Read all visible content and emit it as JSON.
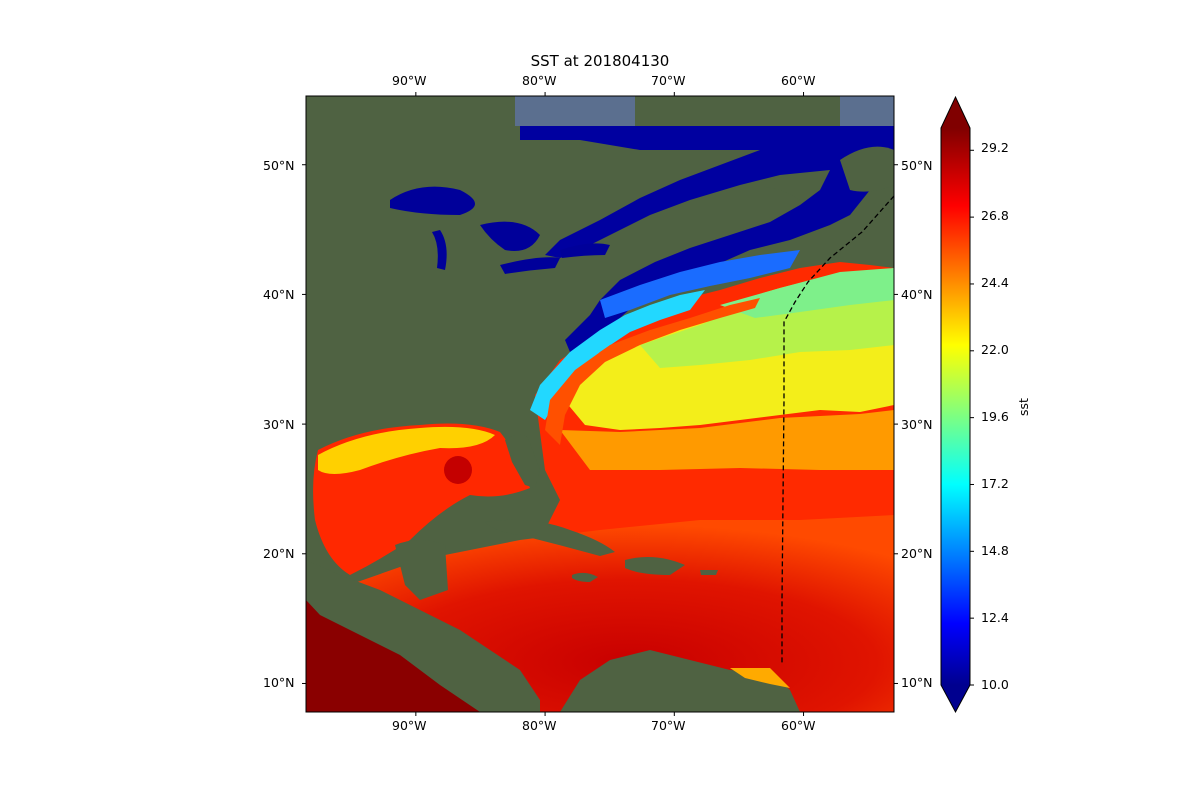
{
  "title": "SST at 201804130",
  "map": {
    "lon_range": [
      -98.5,
      -53
    ],
    "lat_range": [
      7.8,
      55.3
    ],
    "lon_ticks": [
      "90°W",
      "80°W",
      "70°W",
      "60°W"
    ],
    "lat_ticks": [
      "10°N",
      "20°N",
      "30°N",
      "40°N",
      "50°N"
    ],
    "basemap": "satellite-imagery",
    "land_color": "#4b5e3e",
    "boundary_line": {
      "style": "dashed",
      "color": "#000000"
    }
  },
  "colorbar": {
    "label": "sst",
    "colormap": "jet",
    "min": 10.0,
    "max": 30.0,
    "extend": "both",
    "tick_labels": [
      "10.0",
      "12.4",
      "14.8",
      "17.2",
      "19.6",
      "22.0",
      "24.4",
      "26.8",
      "29.2"
    ],
    "tick_values": [
      10.0,
      12.4,
      14.8,
      17.2,
      19.6,
      22.0,
      24.4,
      26.8,
      29.2
    ]
  }
}
